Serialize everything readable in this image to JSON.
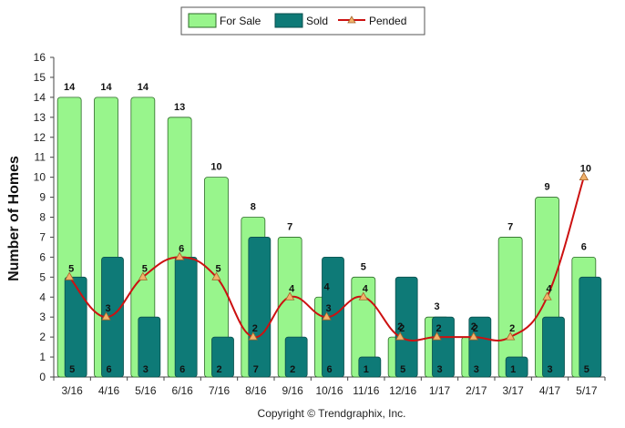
{
  "chart_data": {
    "type": "bar",
    "ylabel": "Number of Homes",
    "credit": "Copyright © Trendgraphix, Inc.",
    "ylim": [
      0,
      16
    ],
    "yticks": [
      0,
      1,
      2,
      3,
      4,
      5,
      6,
      7,
      8,
      9,
      10,
      11,
      12,
      13,
      14,
      15,
      16
    ],
    "grid": false,
    "legend_position": "top-center",
    "categories": [
      "3/16",
      "4/16",
      "5/16",
      "6/16",
      "7/16",
      "8/16",
      "9/16",
      "10/16",
      "11/16",
      "12/16",
      "1/17",
      "2/17",
      "3/17",
      "4/17",
      "5/17"
    ],
    "series": [
      {
        "name": "For Sale",
        "type": "bar",
        "color": "#98F58C",
        "stroke": "#2d6b28",
        "values": [
          14,
          14,
          14,
          13,
          10,
          8,
          7,
          4,
          5,
          2,
          3,
          2,
          7,
          9,
          6
        ]
      },
      {
        "name": "Sold",
        "type": "bar",
        "color": "#0E7A77",
        "stroke": "#0a4f4d",
        "values": [
          5,
          6,
          3,
          6,
          2,
          7,
          2,
          6,
          1,
          5,
          3,
          3,
          1,
          3,
          5
        ]
      },
      {
        "name": "Pended",
        "type": "line",
        "color": "#CC1111",
        "marker_color": "#F2B26B",
        "values": [
          5,
          3,
          5,
          6,
          5,
          2,
          4,
          3,
          4,
          2,
          2,
          2,
          2,
          4,
          10
        ]
      }
    ]
  }
}
